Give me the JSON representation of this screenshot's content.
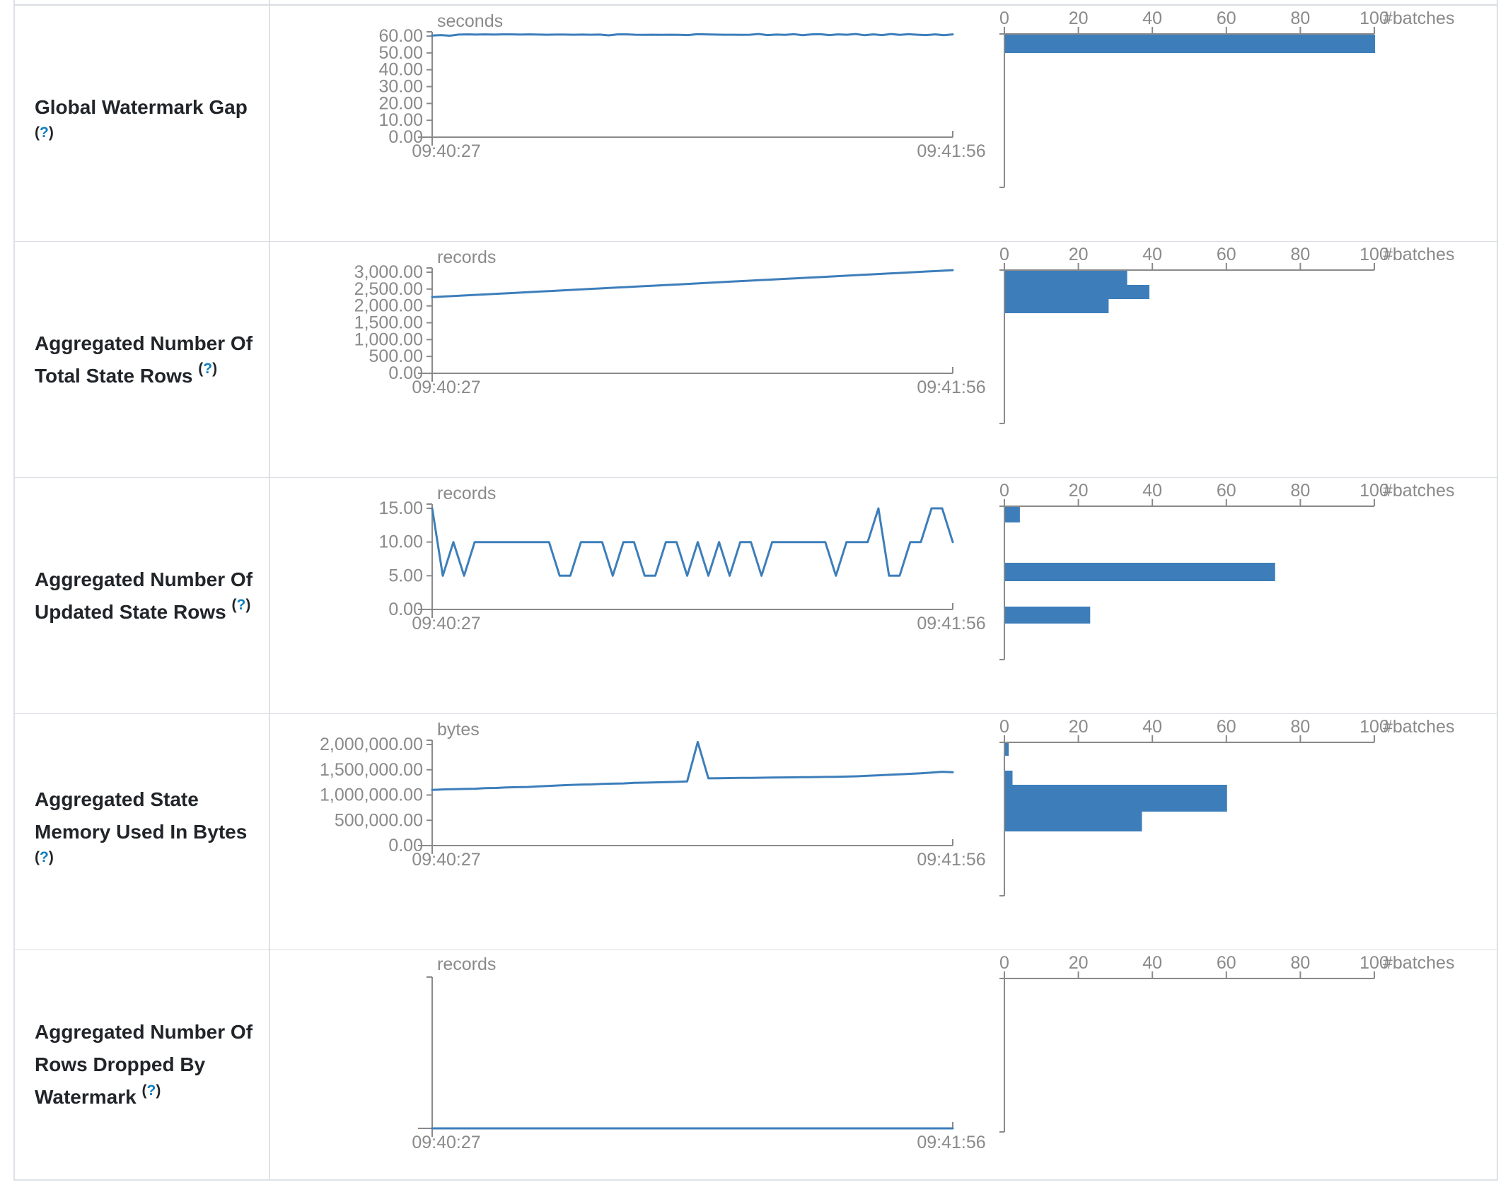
{
  "colors": {
    "accent": "#3d7eba",
    "axis": "#8a8a8a",
    "label_text": "#212529",
    "help_link": "#0d7ec2",
    "border": "#dee2e6"
  },
  "time_axis": {
    "start": "09:40:27",
    "end": "09:41:56"
  },
  "batch_axis": {
    "ticks": [
      0,
      20,
      40,
      60,
      80,
      100
    ],
    "max": 100,
    "label": "#batches"
  },
  "help_symbol": {
    "open": "(",
    "q": "?",
    "close": ")"
  },
  "rows": [
    {
      "label": "Global Watermark Gap",
      "chart_data": {
        "timeline": {
          "type": "line",
          "unit": "seconds",
          "ylabel_ticks": [
            "60.00",
            "50.00",
            "40.00",
            "30.00",
            "20.00",
            "10.00",
            "0.00"
          ],
          "ymax": 60,
          "x_start": "09:40:27",
          "x_end": "09:41:56",
          "values": [
            60.3,
            60.6,
            60.2,
            60.9,
            61.0,
            60.9,
            61.0,
            60.9,
            61.0,
            61.0,
            60.9,
            61.0,
            60.9,
            60.8,
            60.9,
            60.9,
            60.8,
            60.9,
            60.8,
            60.9,
            60.4,
            61.0,
            61.0,
            60.8,
            60.7,
            60.8,
            60.7,
            60.8,
            60.7,
            60.6,
            61.1,
            61.0,
            60.9,
            60.8,
            60.8,
            60.7,
            60.8,
            61.2,
            60.6,
            60.9,
            60.7,
            61.1,
            60.5,
            61.0,
            61.1,
            60.6,
            61.0,
            60.8,
            61.2,
            60.5,
            61.0,
            60.6,
            61.2,
            60.7,
            61.1,
            60.8,
            60.6,
            61.0,
            60.5,
            61.0
          ]
        },
        "histogram": {
          "type": "bar",
          "unit": "#batches",
          "xmax": 100,
          "bars": [
            {
              "offset": 1,
              "h": 26,
              "count": 100
            }
          ]
        }
      }
    },
    {
      "label": "Aggregated Number Of Total State Rows",
      "chart_data": {
        "timeline": {
          "type": "line",
          "unit": "records",
          "ylabel_ticks": [
            "3,000.00",
            "2,500.00",
            "2,000.00",
            "1,500.00",
            "1,000.00",
            "500.00",
            "0.00"
          ],
          "ymax": 3000,
          "x_start": "09:40:27",
          "x_end": "09:41:56",
          "values": [
            2260,
            2280,
            2300,
            2320,
            2340,
            2360,
            2380,
            2400,
            2420,
            2440,
            2460,
            2480,
            2500,
            2520,
            2540,
            2560,
            2580,
            2600,
            2620,
            2640,
            2660,
            2680,
            2700,
            2720,
            2740,
            2760,
            2780,
            2800,
            2820,
            2840,
            2860,
            2880,
            2900,
            2920,
            2940,
            2960,
            2980,
            3000,
            3020,
            3040,
            3060
          ]
        },
        "histogram": {
          "type": "bar",
          "unit": "#batches",
          "xmax": 100,
          "bars": [
            {
              "offset": 1,
              "h": 20,
              "count": 33
            },
            {
              "offset": 21,
              "h": 20,
              "count": 39
            },
            {
              "offset": 41,
              "h": 20,
              "count": 28
            }
          ]
        }
      }
    },
    {
      "label": "Aggregated Number Of Updated State Rows",
      "chart_data": {
        "timeline": {
          "type": "line",
          "unit": "records",
          "ylabel_ticks": [
            "15.00",
            "10.00",
            "5.00",
            "0.00"
          ],
          "ymax": 15,
          "x_start": "09:40:27",
          "x_end": "09:41:56",
          "values": [
            15,
            5,
            10,
            5,
            10,
            10,
            10,
            10,
            10,
            10,
            10,
            10,
            5,
            5,
            10,
            10,
            10,
            5,
            10,
            10,
            5,
            5,
            10,
            10,
            5,
            10,
            5,
            10,
            5,
            10,
            10,
            5,
            10,
            10,
            10,
            10,
            10,
            10,
            5,
            10,
            10,
            10,
            15,
            5,
            5,
            10,
            10,
            15,
            15,
            10
          ]
        },
        "histogram": {
          "type": "bar",
          "unit": "#batches",
          "xmax": 100,
          "bars": [
            {
              "offset": 1,
              "h": 22,
              "count": 4
            },
            {
              "offset": 80,
              "h": 26,
              "count": 73
            },
            {
              "offset": 142,
              "h": 24,
              "count": 23
            }
          ]
        }
      }
    },
    {
      "label": "Aggregated State Memory Used In Bytes",
      "chart_data": {
        "timeline": {
          "type": "line",
          "unit": "bytes",
          "ylabel_ticks": [
            "2,000,000.00",
            "1,500,000.00",
            "1,000,000.00",
            "500,000.00",
            "0.00"
          ],
          "ymax": 2000000,
          "x_start": "09:40:27",
          "x_end": "09:41:56",
          "values": [
            1100000,
            1110000,
            1115000,
            1120000,
            1125000,
            1135000,
            1140000,
            1150000,
            1155000,
            1160000,
            1170000,
            1180000,
            1190000,
            1200000,
            1205000,
            1210000,
            1220000,
            1225000,
            1230000,
            1240000,
            1245000,
            1250000,
            1255000,
            1260000,
            1270000,
            2050000,
            1330000,
            1332000,
            1335000,
            1338000,
            1340000,
            1342000,
            1345000,
            1348000,
            1350000,
            1352000,
            1355000,
            1358000,
            1360000,
            1365000,
            1370000,
            1380000,
            1390000,
            1400000,
            1410000,
            1420000,
            1430000,
            1445000,
            1460000,
            1450000
          ]
        },
        "histogram": {
          "type": "bar",
          "unit": "#batches",
          "xmax": 100,
          "bars": [
            {
              "offset": 1,
              "h": 18,
              "count": 1
            },
            {
              "offset": 40,
              "h": 20,
              "count": 2
            },
            {
              "offset": 60,
              "h": 38,
              "count": 60
            },
            {
              "offset": 98,
              "h": 28,
              "count": 37
            }
          ]
        }
      }
    },
    {
      "label": "Aggregated Number Of Rows Dropped By Watermark",
      "chart_data": {
        "timeline": {
          "type": "line",
          "unit": "records",
          "ylabel_ticks": [],
          "ymax": 1,
          "x_start": "09:40:27",
          "x_end": "09:41:56",
          "values": [
            0,
            0,
            0,
            0,
            0,
            0,
            0,
            0,
            0,
            0
          ]
        },
        "histogram": {
          "type": "bar",
          "unit": "#batches",
          "xmax": 100,
          "bars": []
        }
      }
    }
  ]
}
